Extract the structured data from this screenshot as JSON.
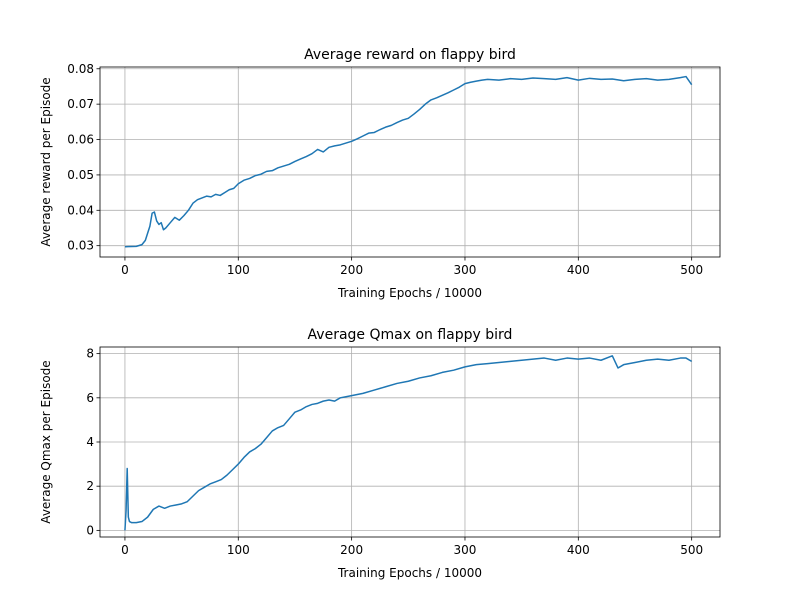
{
  "chart_data": [
    {
      "type": "line",
      "title": "Average reward on flappy bird",
      "xlabel": "Training Epochs / 10000",
      "ylabel": "Average reward per Episode",
      "xlim": [
        -22,
        525
      ],
      "ylim": [
        0.0268,
        0.0805
      ],
      "xticks": [
        0,
        100,
        200,
        300,
        400,
        500
      ],
      "yticks": [
        0.03,
        0.04,
        0.05,
        0.06,
        0.07,
        0.08
      ],
      "ytick_labels": [
        "0.03",
        "0.04",
        "0.05",
        "0.06",
        "0.07",
        "0.08"
      ],
      "grid": true,
      "series": [
        {
          "x": [
            0,
            10,
            15,
            18,
            20,
            22,
            24,
            26,
            28,
            30,
            32,
            34,
            36,
            40,
            44,
            48,
            52,
            56,
            60,
            64,
            68,
            72,
            76,
            80,
            84,
            88,
            92,
            96,
            100,
            105,
            110,
            115,
            120,
            125,
            130,
            135,
            140,
            145,
            150,
            155,
            160,
            165,
            170,
            175,
            180,
            185,
            190,
            195,
            200,
            205,
            210,
            215,
            220,
            225,
            230,
            235,
            240,
            245,
            250,
            255,
            260,
            265,
            270,
            275,
            280,
            285,
            290,
            295,
            300,
            305,
            310,
            315,
            320,
            330,
            340,
            350,
            360,
            370,
            380,
            390,
            400,
            410,
            420,
            430,
            440,
            450,
            460,
            470,
            480,
            490,
            495,
            500
          ],
          "values": [
            0.0297,
            0.0298,
            0.0303,
            0.0315,
            0.0335,
            0.0355,
            0.0392,
            0.0395,
            0.037,
            0.036,
            0.0365,
            0.0345,
            0.035,
            0.0365,
            0.038,
            0.0372,
            0.0385,
            0.04,
            0.042,
            0.043,
            0.0435,
            0.044,
            0.0438,
            0.0445,
            0.0442,
            0.045,
            0.0458,
            0.0462,
            0.0475,
            0.0485,
            0.049,
            0.0498,
            0.0502,
            0.051,
            0.0512,
            0.052,
            0.0525,
            0.053,
            0.0538,
            0.0545,
            0.0552,
            0.056,
            0.0572,
            0.0565,
            0.0578,
            0.0582,
            0.0585,
            0.059,
            0.0595,
            0.0602,
            0.061,
            0.0618,
            0.062,
            0.0628,
            0.0635,
            0.064,
            0.0648,
            0.0655,
            0.066,
            0.0672,
            0.0685,
            0.07,
            0.0712,
            0.0718,
            0.0725,
            0.0732,
            0.074,
            0.0748,
            0.0758,
            0.0762,
            0.0765,
            0.0768,
            0.077,
            0.0768,
            0.0772,
            0.077,
            0.0774,
            0.0772,
            0.077,
            0.0775,
            0.0768,
            0.0773,
            0.077,
            0.0771,
            0.0766,
            0.077,
            0.0772,
            0.0768,
            0.077,
            0.0775,
            0.0778,
            0.0755
          ]
        }
      ]
    },
    {
      "type": "line",
      "title": "Average Qmax on flappy bird",
      "xlabel": "Training Epochs / 10000",
      "ylabel": "Average Qmax per Episode",
      "xlim": [
        -22,
        525
      ],
      "ylim": [
        -0.3,
        8.3
      ],
      "xticks": [
        0,
        100,
        200,
        300,
        400,
        500
      ],
      "yticks": [
        0,
        2,
        4,
        6,
        8
      ],
      "ytick_labels": [
        "0",
        "2",
        "4",
        "6",
        "8"
      ],
      "grid": true,
      "series": [
        {
          "x": [
            0,
            1,
            2,
            3,
            4,
            6,
            10,
            15,
            20,
            25,
            30,
            35,
            40,
            45,
            50,
            55,
            60,
            65,
            70,
            75,
            80,
            85,
            90,
            95,
            100,
            105,
            110,
            115,
            120,
            125,
            130,
            135,
            140,
            145,
            150,
            155,
            160,
            165,
            170,
            175,
            180,
            185,
            190,
            195,
            200,
            210,
            220,
            230,
            240,
            250,
            260,
            270,
            280,
            290,
            300,
            310,
            320,
            330,
            340,
            350,
            360,
            370,
            380,
            390,
            400,
            410,
            420,
            430,
            435,
            440,
            450,
            460,
            470,
            480,
            490,
            495,
            500
          ],
          "values": [
            0.0,
            0.9,
            2.8,
            0.6,
            0.4,
            0.35,
            0.35,
            0.4,
            0.6,
            0.95,
            1.1,
            1.0,
            1.1,
            1.15,
            1.2,
            1.3,
            1.55,
            1.8,
            1.95,
            2.1,
            2.2,
            2.3,
            2.5,
            2.75,
            3.0,
            3.3,
            3.55,
            3.7,
            3.9,
            4.2,
            4.5,
            4.65,
            4.75,
            5.05,
            5.35,
            5.45,
            5.6,
            5.7,
            5.75,
            5.85,
            5.9,
            5.85,
            6.0,
            6.05,
            6.1,
            6.2,
            6.35,
            6.5,
            6.65,
            6.75,
            6.9,
            7.0,
            7.15,
            7.25,
            7.4,
            7.5,
            7.55,
            7.6,
            7.65,
            7.7,
            7.75,
            7.8,
            7.7,
            7.8,
            7.75,
            7.8,
            7.7,
            7.9,
            7.35,
            7.5,
            7.6,
            7.7,
            7.75,
            7.7,
            7.8,
            7.8,
            7.65
          ]
        }
      ]
    }
  ]
}
